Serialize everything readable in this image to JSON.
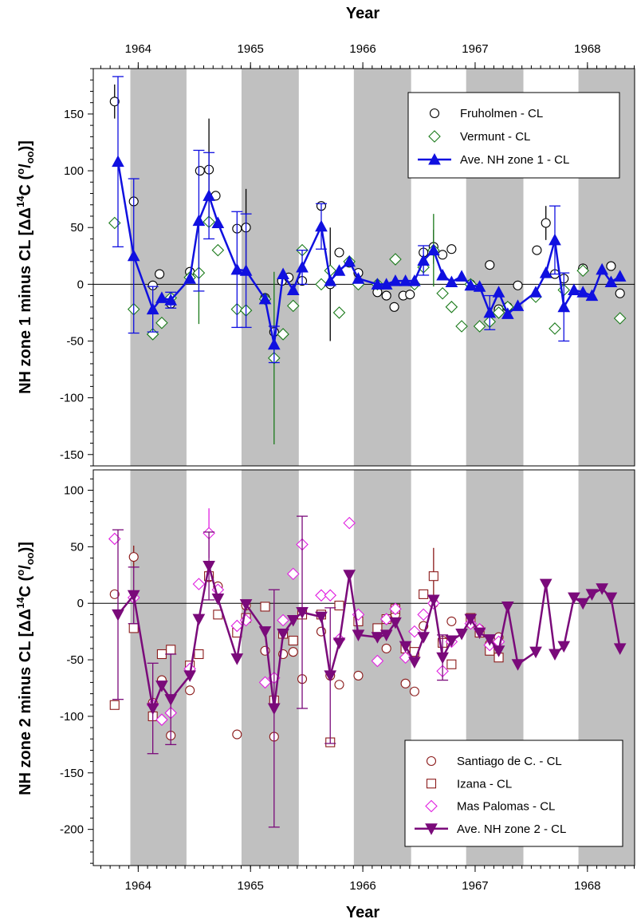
{
  "chart_data": [
    {
      "type": "line",
      "title": "",
      "xlabel": "Year",
      "ylabel": "NH zone 1 minus CL [ΔΔ14C (o/oo)]",
      "ylabel_parts": {
        "main": "NH zone 1 minus CL [ΔΔ",
        "sup1": "14",
        "mid": "C (",
        "sup2": "o",
        "slash": "/",
        "sub": "oo",
        "end": ")]"
      },
      "xlim": [
        1963.6,
        1968.42
      ],
      "ylim": [
        -160,
        190
      ],
      "x_ticks": [
        1964,
        1965,
        1966,
        1967,
        1968
      ],
      "x_tick_labels": [
        "1964",
        "1965",
        "1966",
        "1967",
        "1968"
      ],
      "y_ticks": [
        150,
        100,
        50,
        0,
        -50,
        -100,
        -150
      ],
      "y_tick_labels": [
        "150",
        "100",
        "50",
        "0",
        "-50",
        "-100",
        "-150"
      ],
      "zero_line": true,
      "shaded_bands": [
        [
          1963.93,
          1964.43
        ],
        [
          1964.92,
          1965.43
        ],
        [
          1965.92,
          1966.43
        ],
        [
          1966.92,
          1967.43
        ],
        [
          1967.92,
          1968.42
        ]
      ],
      "legend_position": "top-right",
      "series": [
        {
          "name": "Fruholmen - CL",
          "marker": "open-circle",
          "color": "#000000",
          "x": [
            1963.79,
            1963.96,
            1964.13,
            1964.19,
            1964.29,
            1964.46,
            1964.55,
            1964.63,
            1964.69,
            1964.88,
            1964.96,
            1965.13,
            1965.21,
            1965.28,
            1965.34,
            1965.46,
            1965.63,
            1965.71,
            1965.79,
            1965.88,
            1965.96,
            1966.13,
            1966.21,
            1966.28,
            1966.36,
            1966.42,
            1966.54,
            1966.63,
            1966.71,
            1966.79,
            1966.96,
            1967.13,
            1967.21,
            1967.29,
            1967.38,
            1967.55,
            1967.63,
            1967.71,
            1967.79,
            1967.96,
            1968.21,
            1968.29
          ],
          "values": [
            161,
            73,
            -1,
            9,
            -17,
            11,
            100,
            101,
            78,
            49,
            50,
            -12,
            -42,
            3,
            6,
            3,
            69,
            0,
            28,
            19,
            10,
            -7,
            -10,
            -20,
            -10,
            -9,
            28,
            33,
            26,
            31,
            0,
            17,
            -22,
            -20,
            -1,
            30,
            54,
            9,
            5,
            14,
            16,
            -8
          ],
          "err": [
            15,
            0,
            0,
            0,
            0,
            0,
            0,
            45,
            0,
            0,
            34,
            0,
            0,
            0,
            0,
            0,
            0,
            50,
            0,
            0,
            0,
            0,
            0,
            0,
            0,
            0,
            0,
            15,
            0,
            0,
            0,
            0,
            0,
            0,
            0,
            0,
            15,
            0,
            0,
            0,
            0,
            0
          ]
        },
        {
          "name": "Vermunt - CL",
          "marker": "open-diamond",
          "color": "#1a7a1a",
          "x": [
            1963.79,
            1963.96,
            1964.13,
            1964.21,
            1964.29,
            1964.46,
            1964.54,
            1964.63,
            1964.71,
            1964.88,
            1964.96,
            1965.13,
            1965.21,
            1965.29,
            1965.38,
            1965.46,
            1965.63,
            1965.71,
            1965.79,
            1965.88,
            1965.96,
            1966.13,
            1966.29,
            1966.46,
            1966.54,
            1966.63,
            1966.71,
            1966.79,
            1966.88,
            1966.96,
            1967.04,
            1967.13,
            1967.21,
            1967.29,
            1967.54,
            1967.71,
            1967.79,
            1967.96,
            1968.29
          ],
          "values": [
            54,
            -22,
            -44,
            -34,
            -12,
            6,
            10,
            55,
            30,
            -22,
            -23,
            -13,
            -65,
            -44,
            -19,
            30,
            0,
            12,
            -25,
            20,
            0,
            0,
            22,
            0,
            15,
            30,
            -8,
            -20,
            -37,
            0,
            -37,
            -33,
            -25,
            -20,
            -11,
            -39,
            -5,
            12,
            -30
          ],
          "err": [
            0,
            0,
            0,
            0,
            0,
            0,
            45,
            0,
            0,
            0,
            0,
            0,
            76,
            0,
            0,
            0,
            0,
            0,
            0,
            0,
            0,
            0,
            0,
            0,
            0,
            32,
            0,
            0,
            0,
            0,
            0,
            0,
            0,
            0,
            0,
            0,
            0,
            0,
            0
          ]
        },
        {
          "name": "Ave. NH zone 1 - CL",
          "marker": "filled-triangle-up",
          "color": "#1010e0",
          "x": [
            1963.82,
            1963.96,
            1964.13,
            1964.21,
            1964.29,
            1964.46,
            1964.54,
            1964.63,
            1964.71,
            1964.88,
            1964.96,
            1965.13,
            1965.21,
            1965.29,
            1965.38,
            1965.46,
            1965.63,
            1965.71,
            1965.79,
            1965.88,
            1965.96,
            1966.13,
            1966.21,
            1966.29,
            1966.38,
            1966.46,
            1966.54,
            1966.63,
            1966.71,
            1966.79,
            1966.88,
            1966.96,
            1967.04,
            1967.13,
            1967.21,
            1967.29,
            1967.38,
            1967.54,
            1967.63,
            1967.71,
            1967.79,
            1967.88,
            1967.96,
            1968.04,
            1968.13,
            1968.21,
            1968.29
          ],
          "values": [
            108,
            25,
            -22,
            -12,
            -14,
            5,
            56,
            78,
            54,
            13,
            12,
            -13,
            -53,
            9,
            -5,
            15,
            51,
            3,
            12,
            20,
            5,
            0,
            0,
            3,
            3,
            3,
            21,
            30,
            8,
            2,
            7,
            -1,
            -2,
            -25,
            -7,
            -26,
            -19,
            -7,
            10,
            39,
            -20,
            -5,
            -7,
            -10,
            13,
            2,
            7
          ],
          "err": [
            75,
            68,
            20,
            0,
            7,
            0,
            62,
            38,
            0,
            51,
            50,
            0,
            16,
            0,
            0,
            15,
            20,
            0,
            0,
            0,
            0,
            0,
            0,
            0,
            0,
            0,
            13,
            0,
            0,
            0,
            0,
            0,
            0,
            15,
            0,
            0,
            0,
            0,
            0,
            30,
            30,
            0,
            0,
            0,
            0,
            0,
            0
          ]
        }
      ]
    },
    {
      "type": "line",
      "title": "",
      "xlabel": "Year",
      "ylabel": "NH zone 2 minus CL [ΔΔ14C (o/oo)]",
      "ylabel_parts": {
        "main": "NH zone 2 minus CL [ΔΔ",
        "sup1": "14",
        "mid": "C (",
        "sup2": "o",
        "slash": "/",
        "sub": "oo",
        "end": ")]"
      },
      "xlim": [
        1963.6,
        1968.42
      ],
      "ylim": [
        -232,
        118
      ],
      "x_ticks": [
        1964,
        1965,
        1966,
        1967,
        1968
      ],
      "x_tick_labels": [
        "1964",
        "1965",
        "1966",
        "1967",
        "1968"
      ],
      "y_ticks": [
        100,
        50,
        0,
        -50,
        -100,
        -150,
        -200
      ],
      "y_tick_labels": [
        "100",
        "50",
        "0",
        "-50",
        "-100",
        "-150",
        "-200"
      ],
      "zero_line": true,
      "shaded_bands": [
        [
          1963.93,
          1964.43
        ],
        [
          1964.92,
          1965.43
        ],
        [
          1965.92,
          1966.43
        ],
        [
          1966.92,
          1967.43
        ],
        [
          1967.92,
          1968.42
        ]
      ],
      "legend_position": "bottom-right",
      "series": [
        {
          "name": "Santiago de C. - CL",
          "marker": "open-circle",
          "color": "#8b1a1a",
          "x": [
            1963.79,
            1963.96,
            1964.13,
            1964.21,
            1964.29,
            1964.46,
            1964.54,
            1964.63,
            1964.71,
            1964.88,
            1964.96,
            1965.13,
            1965.21,
            1965.29,
            1965.38,
            1965.46,
            1965.63,
            1965.71,
            1965.79,
            1965.96,
            1966.13,
            1966.21,
            1966.29,
            1966.38,
            1966.46,
            1966.54,
            1966.63,
            1966.71,
            1966.79,
            1966.96,
            1967.04,
            1967.13,
            1967.21
          ],
          "values": [
            8,
            41,
            -88,
            -68,
            -117,
            -77,
            -45,
            23,
            15,
            -116,
            -2,
            -42,
            -118,
            -45,
            -43,
            -67,
            -25,
            -64,
            -72,
            -64,
            -28,
            -40,
            -10,
            -71,
            -78,
            -20,
            0,
            -33,
            -16,
            -18,
            -23,
            -36,
            -30
          ],
          "err": [
            0,
            10,
            0,
            0,
            0,
            0,
            0,
            0,
            0,
            0,
            0,
            0,
            0,
            0,
            0,
            0,
            0,
            0,
            0,
            0,
            0,
            0,
            0,
            0,
            0,
            0,
            0,
            0,
            0,
            0,
            0,
            0,
            0
          ]
        },
        {
          "name": "Izana - CL",
          "marker": "open-square",
          "color": "#8b1a1a",
          "x": [
            1963.79,
            1963.96,
            1964.13,
            1964.21,
            1964.29,
            1964.46,
            1964.54,
            1964.63,
            1964.71,
            1964.88,
            1964.96,
            1965.13,
            1965.21,
            1965.29,
            1965.38,
            1965.46,
            1965.63,
            1965.71,
            1965.79,
            1965.96,
            1966.13,
            1966.21,
            1966.29,
            1966.38,
            1966.46,
            1966.54,
            1966.63,
            1966.71,
            1966.79,
            1966.96,
            1967.04,
            1967.13,
            1967.21
          ],
          "values": [
            -90,
            -22,
            -100,
            -45,
            -41,
            -55,
            -45,
            24,
            -10,
            -26,
            -13,
            -3,
            -86,
            -27,
            -33,
            -10,
            -10,
            -123,
            -2,
            -16,
            -22,
            -14,
            -5,
            -40,
            -43,
            8,
            24,
            -35,
            -54,
            -13,
            -26,
            -42,
            -48
          ],
          "err": [
            0,
            0,
            0,
            0,
            0,
            0,
            0,
            0,
            0,
            0,
            0,
            0,
            0,
            0,
            0,
            0,
            0,
            0,
            0,
            0,
            0,
            0,
            0,
            0,
            0,
            0,
            25,
            0,
            0,
            0,
            0,
            0,
            0
          ]
        },
        {
          "name": "Mas Palomas - CL",
          "marker": "open-diamond",
          "color": "#e020e0",
          "x": [
            1963.79,
            1963.96,
            1964.13,
            1964.21,
            1964.29,
            1964.46,
            1964.54,
            1964.63,
            1964.71,
            1964.88,
            1964.96,
            1965.13,
            1965.21,
            1965.29,
            1965.38,
            1965.46,
            1965.63,
            1965.71,
            1965.79,
            1965.88,
            1965.96,
            1966.13,
            1966.21,
            1966.29,
            1966.38,
            1966.46,
            1966.54,
            1966.63,
            1966.71,
            1966.79,
            1966.96,
            1967.04,
            1967.13,
            1967.21
          ],
          "values": [
            57,
            5,
            -90,
            -103,
            -97,
            -58,
            17,
            62,
            12,
            -20,
            -15,
            -70,
            -66,
            -15,
            26,
            52,
            7,
            7,
            -32,
            71,
            -10,
            -51,
            -14,
            -5,
            -48,
            -25,
            -10,
            0,
            -60,
            -34,
            -18,
            -23,
            -37,
            -34
          ],
          "err": [
            0,
            0,
            0,
            0,
            0,
            0,
            0,
            22,
            0,
            0,
            0,
            0,
            0,
            0,
            0,
            0,
            0,
            0,
            0,
            0,
            0,
            0,
            0,
            0,
            0,
            0,
            0,
            0,
            0,
            0,
            0,
            0,
            0,
            0
          ]
        },
        {
          "name": "Ave. NH zone 2 - CL",
          "marker": "filled-triangle-down",
          "color": "#7a0a7a",
          "x": [
            1963.82,
            1963.96,
            1964.13,
            1964.21,
            1964.29,
            1964.46,
            1964.54,
            1964.63,
            1964.71,
            1964.88,
            1964.96,
            1965.13,
            1965.21,
            1965.29,
            1965.38,
            1965.46,
            1965.63,
            1965.71,
            1965.79,
            1965.88,
            1965.96,
            1966.13,
            1966.21,
            1966.29,
            1966.38,
            1966.46,
            1966.54,
            1966.63,
            1966.71,
            1966.79,
            1966.88,
            1966.96,
            1967.04,
            1967.13,
            1967.21,
            1967.29,
            1967.38,
            1967.54,
            1967.63,
            1967.71,
            1967.79,
            1967.88,
            1967.96,
            1968.04,
            1968.13,
            1968.21,
            1968.29
          ],
          "values": [
            -10,
            7,
            -93,
            -73,
            -85,
            -64,
            -14,
            33,
            4,
            -49,
            -1,
            -25,
            -93,
            -27,
            -15,
            -8,
            -12,
            -64,
            -35,
            25,
            -28,
            -30,
            -28,
            -17,
            -38,
            -52,
            -30,
            3,
            -48,
            -33,
            -27,
            -14,
            -26,
            -32,
            -42,
            -3,
            -54,
            -43,
            17,
            -45,
            -38,
            5,
            0,
            8,
            13,
            5,
            -40
          ],
          "err": [
            75,
            25,
            40,
            0,
            40,
            0,
            0,
            30,
            0,
            0,
            0,
            0,
            105,
            0,
            0,
            85,
            0,
            60,
            0,
            0,
            0,
            0,
            0,
            0,
            0,
            0,
            0,
            0,
            20,
            0,
            0,
            0,
            0,
            0,
            0,
            0,
            0,
            0,
            0,
            0,
            0,
            0,
            0,
            0,
            0,
            0,
            0
          ]
        }
      ]
    }
  ]
}
